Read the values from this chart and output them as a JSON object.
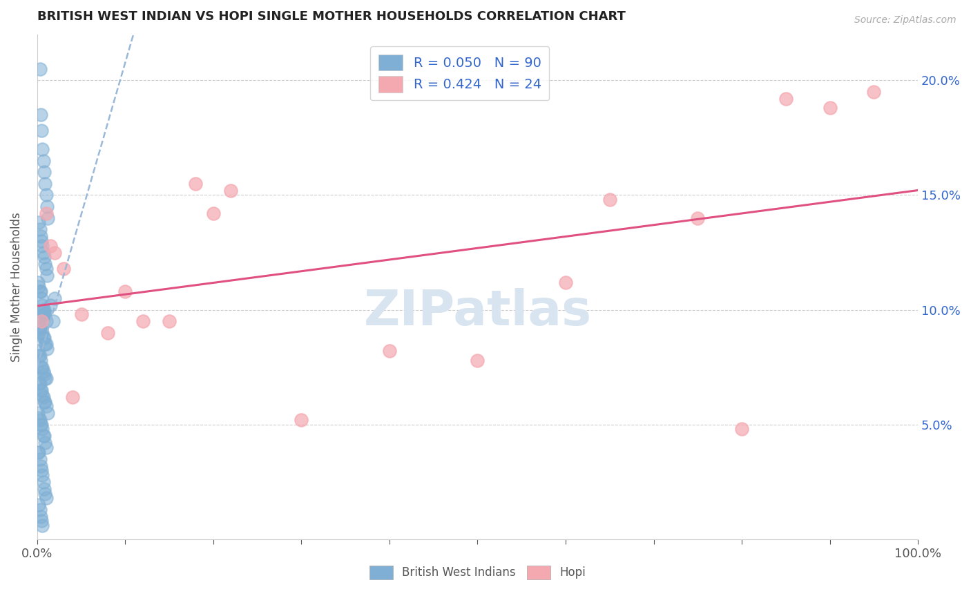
{
  "title": "BRITISH WEST INDIAN VS HOPI SINGLE MOTHER HOUSEHOLDS CORRELATION CHART",
  "source": "Source: ZipAtlas.com",
  "ylabel": "Single Mother Households",
  "xlim": [
    0,
    100
  ],
  "ylim": [
    0,
    22
  ],
  "yticks": [
    0,
    5,
    10,
    15,
    20
  ],
  "ytick_labels": [
    "",
    "5.0%",
    "10.0%",
    "15.0%",
    "20.0%"
  ],
  "xtick_positions": [
    0,
    10,
    20,
    30,
    40,
    50,
    60,
    70,
    80,
    90,
    100
  ],
  "legend_blue_r": "R = 0.050",
  "legend_blue_n": "N = 90",
  "legend_pink_r": "R = 0.424",
  "legend_pink_n": "N = 24",
  "legend_bottom_blue": "British West Indians",
  "legend_bottom_pink": "Hopi",
  "blue_color": "#7fafd4",
  "pink_color": "#f4a8b0",
  "blue_line_color": "#7fafd4",
  "pink_line_color": "#e05080",
  "dashed_line_color": "#9ab8d8",
  "r_n_color": "#3366cc",
  "watermark_color": "#d8e4f0",
  "background_color": "#ffffff",
  "blue_x": [
    0.3,
    0.4,
    0.5,
    0.6,
    0.7,
    0.8,
    0.9,
    1.0,
    1.1,
    1.2,
    0.2,
    0.3,
    0.4,
    0.5,
    0.6,
    0.7,
    0.8,
    0.9,
    1.0,
    1.1,
    0.1,
    0.2,
    0.3,
    0.4,
    0.5,
    0.6,
    0.7,
    0.8,
    0.9,
    1.0,
    0.2,
    0.3,
    0.4,
    0.5,
    0.6,
    0.7,
    0.8,
    0.9,
    1.0,
    1.1,
    0.1,
    0.2,
    0.3,
    0.4,
    0.5,
    0.6,
    0.7,
    0.8,
    0.9,
    1.0,
    0.2,
    0.3,
    0.4,
    0.5,
    0.6,
    0.7,
    0.8,
    0.9,
    1.0,
    1.2,
    0.1,
    0.2,
    0.3,
    0.4,
    0.5,
    0.6,
    0.7,
    0.8,
    0.9,
    1.0,
    0.1,
    0.2,
    0.3,
    0.4,
    0.5,
    0.6,
    0.7,
    0.8,
    0.9,
    1.0,
    0.2,
    0.3,
    0.4,
    0.5,
    0.6,
    0.7,
    0.8,
    1.5,
    2.0,
    1.8
  ],
  "blue_y": [
    20.5,
    18.5,
    17.8,
    17.0,
    16.5,
    16.0,
    15.5,
    15.0,
    14.5,
    14.0,
    13.8,
    13.5,
    13.2,
    13.0,
    12.8,
    12.5,
    12.3,
    12.0,
    11.8,
    11.5,
    11.2,
    11.0,
    10.8,
    10.8,
    10.5,
    10.2,
    10.0,
    9.8,
    9.8,
    9.5,
    9.5,
    9.3,
    9.2,
    9.0,
    9.0,
    8.8,
    8.8,
    8.5,
    8.5,
    8.3,
    8.2,
    8.0,
    8.0,
    7.8,
    7.5,
    7.5,
    7.3,
    7.2,
    7.0,
    7.0,
    6.8,
    6.8,
    6.5,
    6.5,
    6.3,
    6.2,
    6.0,
    6.0,
    5.8,
    5.5,
    5.5,
    5.3,
    5.2,
    5.0,
    5.0,
    4.8,
    4.5,
    4.5,
    4.2,
    4.0,
    3.8,
    3.8,
    3.5,
    3.2,
    3.0,
    2.8,
    2.5,
    2.2,
    2.0,
    1.8,
    1.5,
    1.3,
    1.0,
    0.8,
    0.6,
    9.8,
    10.0,
    10.2,
    10.5,
    9.5
  ],
  "pink_x": [
    1.0,
    2.0,
    3.0,
    5.0,
    8.0,
    10.0,
    12.0,
    15.0,
    20.0,
    22.0,
    30.0,
    40.0,
    50.0,
    60.0,
    65.0,
    75.0,
    80.0,
    85.0,
    90.0,
    95.0,
    1.5,
    4.0,
    0.5,
    18.0
  ],
  "pink_y": [
    14.2,
    12.5,
    11.8,
    9.8,
    9.0,
    10.8,
    9.5,
    9.5,
    14.2,
    15.2,
    5.2,
    8.2,
    7.8,
    11.2,
    14.8,
    14.0,
    4.8,
    19.2,
    18.8,
    19.5,
    12.8,
    6.2,
    9.5,
    15.5
  ]
}
